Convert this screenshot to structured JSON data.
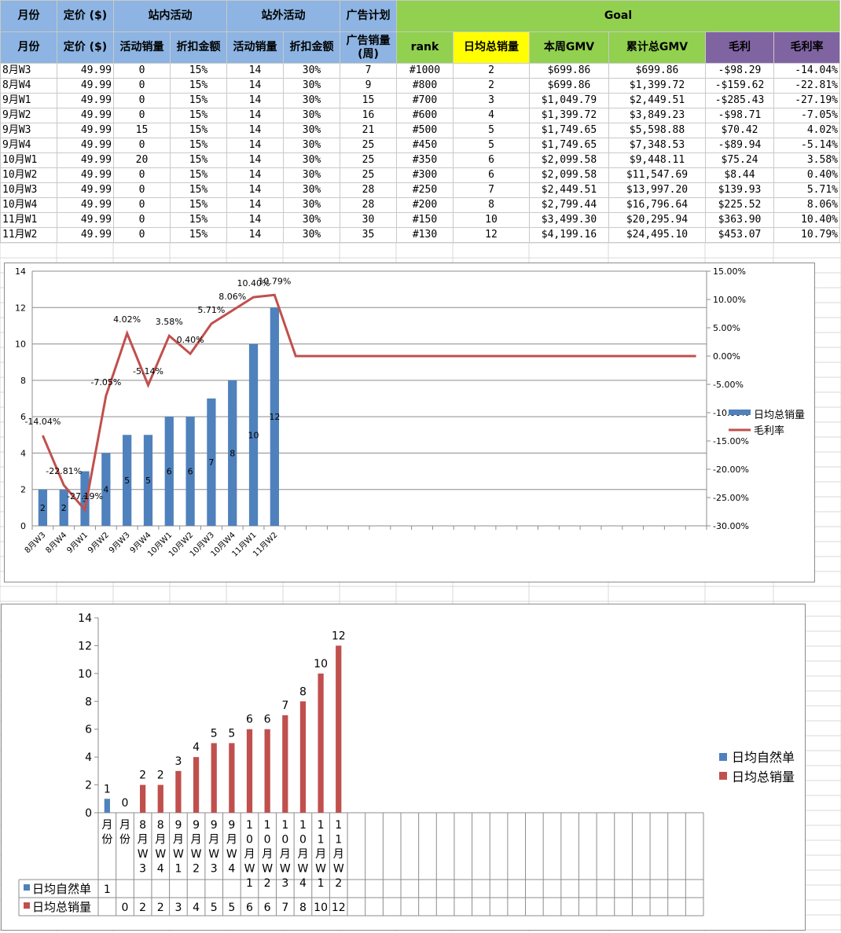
{
  "colors": {
    "header_blue": "#8db4e2",
    "goal_green": "#92d050",
    "highlight_yellow": "#ffff00",
    "profit_purple": "#8064a2",
    "bar_blue": "#4f81bd",
    "bar_red": "#c0504d",
    "line_red": "#c0504d"
  },
  "table": {
    "header1": {
      "month": "月份",
      "price": "定价 ($)",
      "onsite": "站内活动",
      "offsite": "站外活动",
      "ads": "广告计划",
      "goal": "Goal"
    },
    "header2": {
      "month": "月份",
      "price": "定价 ($)",
      "onsite_sales": "活动销量",
      "onsite_discount": "折扣金额",
      "offsite_sales": "活动销量",
      "offsite_discount": "折扣金额",
      "ad_sales": "广告销量(周)",
      "rank": "rank",
      "daily_total": "日均总销量",
      "week_gmv": "本周GMV",
      "cum_gmv": "累计总GMV",
      "profit": "毛利",
      "margin": "毛利率"
    },
    "rows": [
      [
        "8月W3",
        "49.99",
        "0",
        "15%",
        "14",
        "30%",
        "7",
        "#1000",
        "2",
        "$699.86",
        "$699.86",
        "-$98.29",
        "-14.04%"
      ],
      [
        "8月W4",
        "49.99",
        "0",
        "15%",
        "14",
        "30%",
        "9",
        "#800",
        "2",
        "$699.86",
        "$1,399.72",
        "-$159.62",
        "-22.81%"
      ],
      [
        "9月W1",
        "49.99",
        "0",
        "15%",
        "14",
        "30%",
        "15",
        "#700",
        "3",
        "$1,049.79",
        "$2,449.51",
        "-$285.43",
        "-27.19%"
      ],
      [
        "9月W2",
        "49.99",
        "0",
        "15%",
        "14",
        "30%",
        "16",
        "#600",
        "4",
        "$1,399.72",
        "$3,849.23",
        "-$98.71",
        "-7.05%"
      ],
      [
        "9月W3",
        "49.99",
        "15",
        "15%",
        "14",
        "30%",
        "21",
        "#500",
        "5",
        "$1,749.65",
        "$5,598.88",
        "$70.42",
        "4.02%"
      ],
      [
        "9月W4",
        "49.99",
        "0",
        "15%",
        "14",
        "30%",
        "25",
        "#450",
        "5",
        "$1,749.65",
        "$7,348.53",
        "-$89.94",
        "-5.14%"
      ],
      [
        "10月W1",
        "49.99",
        "20",
        "15%",
        "14",
        "30%",
        "25",
        "#350",
        "6",
        "$2,099.58",
        "$9,448.11",
        "$75.24",
        "3.58%"
      ],
      [
        "10月W2",
        "49.99",
        "0",
        "15%",
        "14",
        "30%",
        "25",
        "#300",
        "6",
        "$2,099.58",
        "$11,547.69",
        "$8.44",
        "0.40%"
      ],
      [
        "10月W3",
        "49.99",
        "0",
        "15%",
        "14",
        "30%",
        "28",
        "#250",
        "7",
        "$2,449.51",
        "$13,997.20",
        "$139.93",
        "5.71%"
      ],
      [
        "10月W4",
        "49.99",
        "0",
        "15%",
        "14",
        "30%",
        "28",
        "#200",
        "8",
        "$2,799.44",
        "$16,796.64",
        "$225.52",
        "8.06%"
      ],
      [
        "11月W1",
        "49.99",
        "0",
        "15%",
        "14",
        "30%",
        "30",
        "#150",
        "10",
        "$3,499.30",
        "$20,295.94",
        "$363.90",
        "10.40%"
      ],
      [
        "11月W2",
        "49.99",
        "0",
        "15%",
        "14",
        "30%",
        "35",
        "#130",
        "12",
        "$4,199.16",
        "$24,495.10",
        "$453.07",
        "10.79%"
      ]
    ]
  },
  "chart_data": [
    {
      "type": "bar",
      "categories": [
        "8月W3",
        "8月W4",
        "9月W1",
        "9月W2",
        "9月W3",
        "9月W4",
        "10月W1",
        "10月W2",
        "10月W3",
        "10月W4",
        "11月W1",
        "11月W2"
      ],
      "series": [
        {
          "name": "日均总销量",
          "type": "bar",
          "axis": "left",
          "values": [
            2,
            2,
            3,
            4,
            5,
            5,
            6,
            6,
            7,
            8,
            10,
            12
          ]
        },
        {
          "name": "毛利率",
          "type": "line",
          "axis": "right",
          "values": [
            -14.04,
            -22.81,
            -27.19,
            -7.05,
            4.02,
            -5.14,
            3.58,
            0.4,
            5.71,
            8.06,
            10.4,
            10.79
          ],
          "point_labels": [
            "-14.04%",
            "-22.81%",
            "-27.19%",
            "-7.05%",
            "4.02%",
            "-5.14%",
            "3.58%",
            "0.40%",
            "5.71%",
            "8.06%",
            "10.40%",
            "10.79%"
          ]
        }
      ],
      "extra_slots": 20,
      "ylim": [
        0,
        14
      ],
      "yticks": [
        "0",
        "2",
        "4",
        "6",
        "8",
        "10",
        "12",
        "14"
      ],
      "y2lim": [
        -30,
        15
      ],
      "y2ticks": [
        "-30.00%",
        "-25.00%",
        "-20.00%",
        "-15.00%",
        "-10.00%",
        "-5.00%",
        "0.00%",
        "5.00%",
        "10.00%",
        "15.00%"
      ],
      "legend": "right",
      "grid": true
    },
    {
      "type": "bar",
      "categories": [
        "月份",
        "月份",
        "8月W3",
        "8月W4",
        "9月W1",
        "9月W2",
        "9月W3",
        "9月W4",
        "10月W1",
        "10月W2",
        "10月W3",
        "10月W4",
        "11月W1",
        "11月W2"
      ],
      "series": [
        {
          "name": "日均自然单",
          "values": [
            1,
            null,
            null,
            null,
            null,
            null,
            null,
            null,
            null,
            null,
            null,
            null,
            null,
            null
          ],
          "table_values": [
            "1",
            "",
            "",
            "",
            "",
            "",
            "",
            "",
            "",
            "",
            "",
            "",
            "",
            ""
          ]
        },
        {
          "name": "日均总销量",
          "values": [
            null,
            0,
            2,
            2,
            3,
            4,
            5,
            5,
            6,
            6,
            7,
            8,
            10,
            12
          ],
          "table_values": [
            "",
            "0",
            "2",
            "2",
            "3",
            "4",
            "5",
            "5",
            "6",
            "6",
            "7",
            "8",
            "10",
            "12"
          ]
        }
      ],
      "empty_slots": 20,
      "ylim": [
        0,
        14
      ],
      "yticks": [
        "0",
        "2",
        "4",
        "6",
        "8",
        "10",
        "12",
        "14"
      ],
      "legend": "right",
      "data_table": true
    }
  ]
}
